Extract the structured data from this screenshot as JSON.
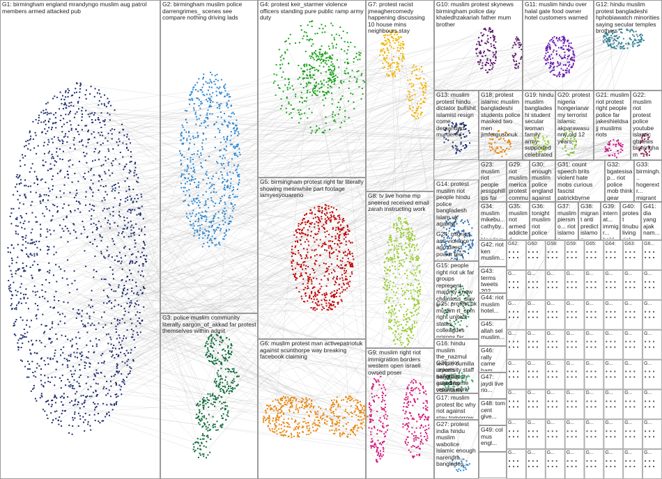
{
  "groups": [
    {
      "label": "G1: birmingham england mrandyngo muslim aug patrol members armed attacked pub"
    },
    {
      "label": "G2: birmingham muslim police darrengrimes_ scenes see compare nothing driving lads"
    },
    {
      "label": "G3: police muslim community literally sargon_of_akkad far protest themselves within admit"
    },
    {
      "label": "G4: protest keir_starmer violence officers standing pure public ramp army duty"
    },
    {
      "label": "G5: birmingham protest right far literally showing meanwhile part footage iamyesyouareno"
    },
    {
      "label": "G6: muslim protest man activepatriotuk against scunthorpe way breaking facebook claiming"
    },
    {
      "label": "G7: protest racist jmeaghercomedy happening discussing 10 house mins neighbours stay"
    },
    {
      "label": "G8: tv live home mp sneered received email zarah instructing work"
    },
    {
      "label": "G9: muslim right riot immigration borders western open israeli owned poser"
    },
    {
      "label": "G10: muslim protest skynews birmingham police day khaledhzakariah father mum brother"
    },
    {
      "label": "G11: muslim hindu over halal gate food owner hotel customers warned"
    },
    {
      "label": "G12: hindu muslim protest bangladeshi hphobiawatch minorities saying secular temples brothers"
    },
    {
      "label": "G13: muslim protest hindu dictator bullshit islamist resign come demanded murdered"
    },
    {
      "label": "G14: protest muslim riot people hindu police bangladesh islam uk against"
    },
    {
      "label": "G15: people right riot uk far groups represent majority know chainless_slave"
    },
    {
      "label": "G16: hindu muslim the_nazmul temple cumilla reports bangladesh guarding voluntarily clerics"
    },
    {
      "label": "G17: muslim protest lbc why riot against stay tomorrow concern whose"
    },
    {
      "label": "G27: protest india hindu muslim wabolice islamic enough narendra... banglades..."
    },
    {
      "label": "G18: protest islamic muslim bangladeshi students police masked two men jimfergusonuk"
    },
    {
      "label": "G19: hindu muslim bangladeshi student secular woman family army supported celebrated"
    },
    {
      "label": "G20: protest nigeria hongerianarmy terrorist islamic akparawasunny old 12 years"
    },
    {
      "label": "G21: muslim riot protest right people police far jakeshieldsajj muslims riots"
    },
    {
      "label": "G22: muslim riot protest police youtube islamic gbnews birmingham muslims right"
    },
    {
      "label": "G23: muslim riot people jesspphillips far right riotership community people"
    },
    {
      "label": "G29: riot muslim merica protest community muslims birmingham..."
    },
    {
      "label": "G30: enough muslim police england against uk muslims defence nothing"
    },
    {
      "label": "G31: count speech brits violent hate mobs curious fascist patrickbyrne protes"
    },
    {
      "label": "G32: bgatesisap... riot police mob think gear probably those..."
    },
    {
      "label": "G33: birmingh... hogerextr... migrant sentence tv regim..."
    },
    {
      "label": "G24: migrant anti violence ago direct power few suggesting speech steenson"
    },
    {
      "label": "G25: protest uk muslim rt_com right united states colleagues prisons far"
    },
    {
      "label": "G26: riot university staff salfordun asked home reports early lorries planned"
    },
    {
      "label": "G34: muslim mikebu... cathyby... blogdam..."
    },
    {
      "label": "G35: muslim not armed addicted running..."
    },
    {
      "label": "G36: tonight muslim riot police"
    },
    {
      "label": "G37: muslim piersmo... riot islamop..."
    },
    {
      "label": "G38: migrant anti predict islamop..."
    },
    {
      "label": "G39: internat... immigr... held brainpt..."
    },
    {
      "label": "G40: protest tinubu living riot bee..."
    },
    {
      "label": "G41: dia yang ajak nam..."
    },
    {
      "label": "G42: riot ken muslim..."
    },
    {
      "label": "G43: terms tweets 202..."
    },
    {
      "label": "G44: riot muslim hotel..."
    },
    {
      "label": "G45: allah sel muslim..."
    },
    {
      "label": "G46: rally came ham..."
    },
    {
      "label": "G47: jaydi live rio..."
    },
    {
      "label": "G48: tom cent give..."
    },
    {
      "label": "G49: col mus engl..."
    }
  ],
  "tiny_groups": [
    "G62:",
    "G60:",
    "G58:",
    "G59:",
    "G65:",
    "G64:",
    "G63:",
    "G6...",
    "G...",
    "G...",
    "G...",
    "G...",
    "G...",
    "G...",
    "G...",
    "G...",
    "G...",
    "G...",
    "G...",
    "G...",
    "G...",
    "G...",
    "G...",
    "G...",
    "G...",
    "G...",
    "G...",
    "G...",
    "G...",
    "G...",
    "G...",
    "G...",
    "G...",
    "G...",
    "G...",
    "G...",
    "G...",
    "G...",
    "G...",
    "G...",
    "G...",
    "G...",
    "G...",
    "G...",
    "G...",
    "G...",
    "G...",
    "G...",
    "G...",
    "G...",
    "G...",
    "G...",
    "G...",
    "G...",
    "G...",
    "G...",
    "G...",
    "G...",
    "G...",
    "G...",
    "G...",
    "G...",
    "G...",
    "G..."
  ]
}
